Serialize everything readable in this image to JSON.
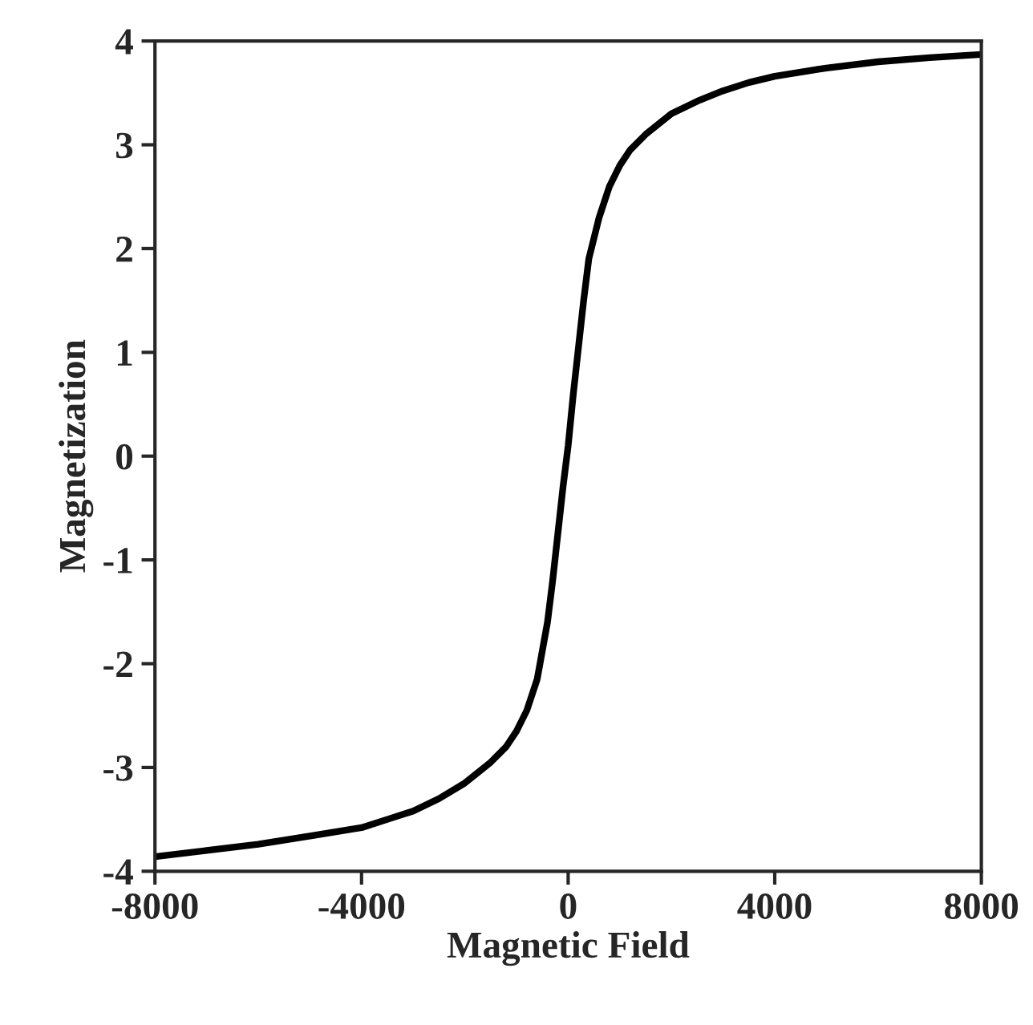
{
  "chart_data": {
    "type": "line",
    "xlabel": "Magnetic Field",
    "ylabel": "Magnetization",
    "x": [
      -8000,
      -7000,
      -6000,
      -5000,
      -4000,
      -3500,
      -3000,
      -2500,
      -2000,
      -1500,
      -1200,
      -1000,
      -800,
      -600,
      -400,
      -300,
      -200,
      -100,
      0,
      100,
      200,
      300,
      400,
      600,
      800,
      1000,
      1200,
      1500,
      2000,
      2500,
      3000,
      3500,
      4000,
      5000,
      6000,
      7000,
      8000
    ],
    "series": [
      {
        "color": "#000000",
        "values": [
          -3.86,
          -3.8,
          -3.74,
          -3.66,
          -3.58,
          -3.5,
          -3.42,
          -3.3,
          -3.15,
          -2.95,
          -2.8,
          -2.65,
          -2.45,
          -2.15,
          -1.6,
          -1.2,
          -0.75,
          -0.3,
          0.1,
          0.6,
          1.05,
          1.5,
          1.9,
          2.3,
          2.6,
          2.8,
          2.95,
          3.1,
          3.3,
          3.42,
          3.52,
          3.6,
          3.66,
          3.74,
          3.8,
          3.84,
          3.87
        ]
      }
    ],
    "xlim": [
      -8000,
      8000
    ],
    "ylim": [
      -4,
      4
    ],
    "xticks": [
      -8000,
      -4000,
      0,
      4000,
      8000
    ],
    "yticks": [
      -4,
      -3,
      -2,
      -1,
      0,
      1,
      2,
      3,
      4
    ],
    "grid": false,
    "marker": "none",
    "line_style": "solid"
  }
}
